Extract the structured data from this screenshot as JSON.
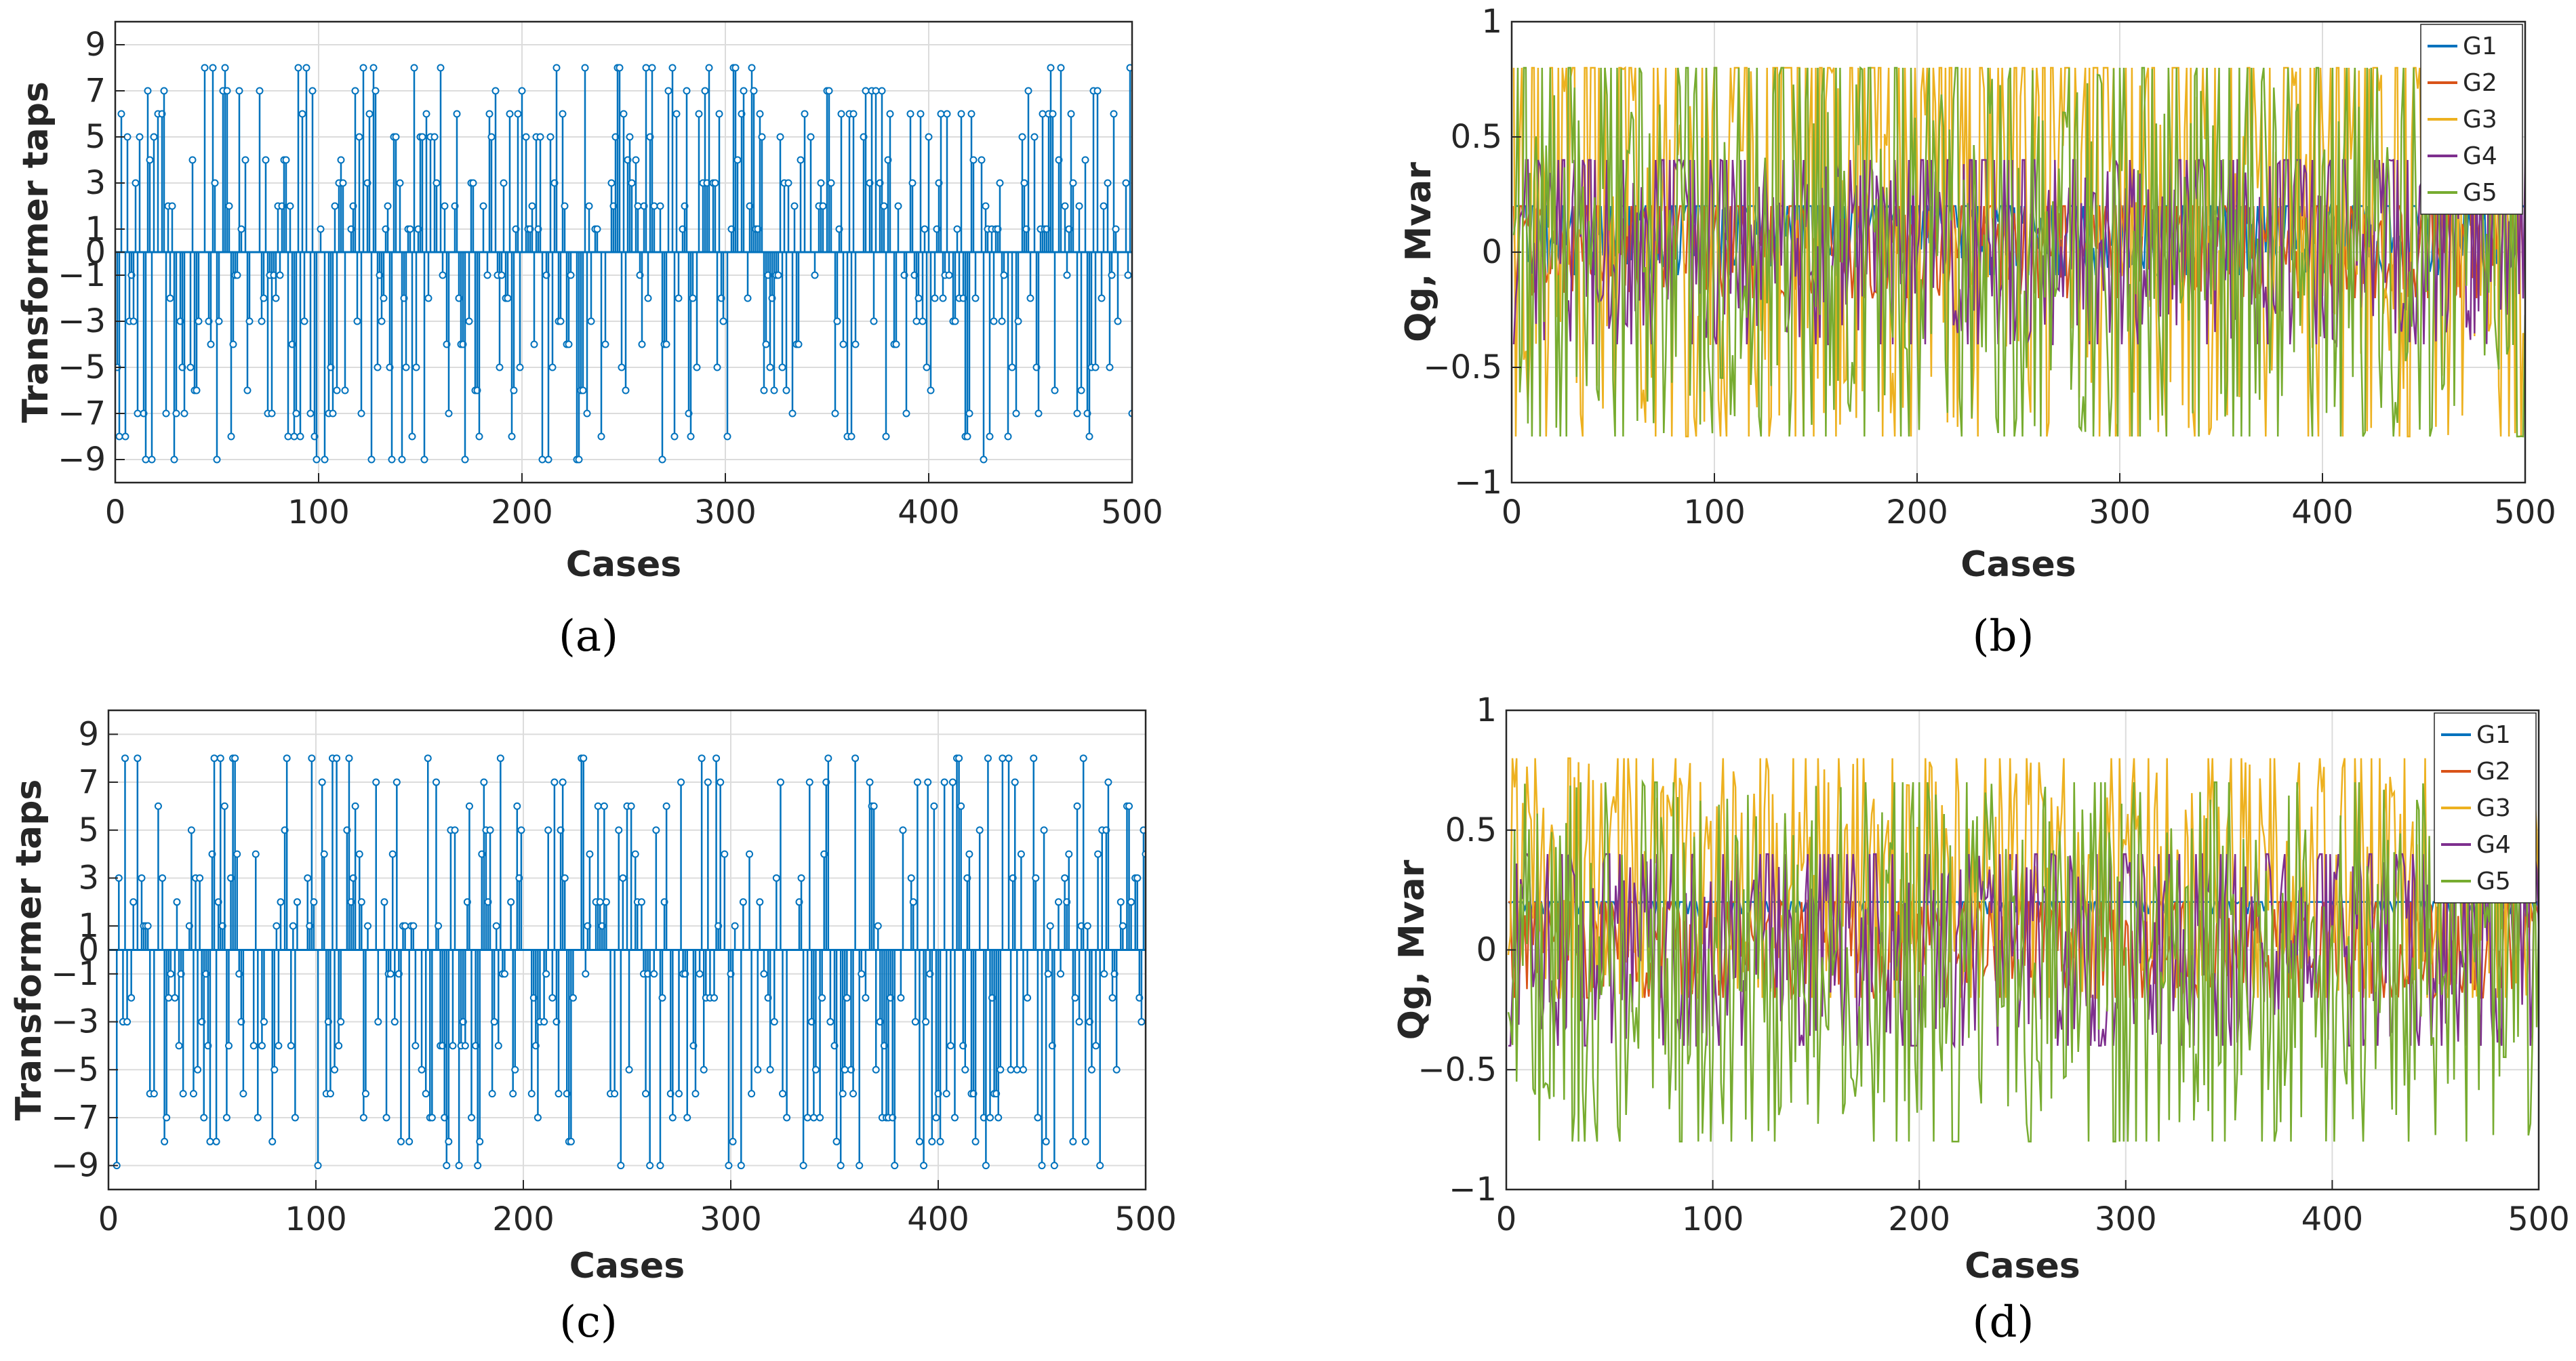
{
  "panels": [
    {
      "id": "a",
      "caption": "(a)",
      "kind": "stem",
      "chart_data": {
        "type": "stem",
        "title": "",
        "xlabel": "Cases",
        "ylabel": "Transformer taps",
        "xlim": [
          0,
          500
        ],
        "ylim": [
          -10,
          10
        ],
        "xticks": [
          0,
          100,
          200,
          300,
          400,
          500
        ],
        "yticks": [
          9,
          7,
          5,
          3,
          1,
          0,
          -1,
          -3,
          -5,
          -7,
          -9
        ],
        "n_points": 500,
        "allowed_values": [
          -9,
          -8,
          -7,
          -6,
          -5,
          -4,
          -3,
          -2,
          -1,
          0,
          1,
          2,
          3,
          4,
          5,
          6,
          7,
          8
        ],
        "color": "#0072BD",
        "series": [
          {
            "name": "Transformer taps",
            "seed": 11,
            "zero_fraction": 0.2
          }
        ]
      }
    },
    {
      "id": "b",
      "caption": "(b)",
      "kind": "lines",
      "chart_data": {
        "type": "line",
        "title": "",
        "xlabel": "Cases",
        "ylabel": "Qg, Mvar",
        "xlim": [
          0,
          500
        ],
        "ylim": [
          -1,
          1
        ],
        "xticks": [
          0,
          100,
          200,
          300,
          400,
          500
        ],
        "yticks": [
          1,
          0.5,
          0,
          -0.5,
          -1
        ],
        "ytick_labels": [
          "1",
          "0.5",
          "0",
          "−0.5",
          "−1"
        ],
        "n_points": 500,
        "legend": "top-right",
        "series": [
          {
            "name": "G1",
            "color": "#0072BD",
            "min": -0.1,
            "max": 0.2,
            "hi_prob": 0.45,
            "seed": 21
          },
          {
            "name": "G2",
            "color": "#D95319",
            "min": -0.2,
            "max": 0.2,
            "hi_prob": 0.25,
            "seed": 22
          },
          {
            "name": "G3",
            "color": "#EDB120",
            "min": -0.8,
            "max": 0.8,
            "hi_prob": 0.35,
            "seed": 23
          },
          {
            "name": "G4",
            "color": "#7E2F8E",
            "min": -0.4,
            "max": 0.4,
            "hi_prob": 0.2,
            "seed": 24
          },
          {
            "name": "G5",
            "color": "#77AC30",
            "min": -0.8,
            "max": 0.8,
            "hi_prob": 0.15,
            "seed": 25
          }
        ]
      }
    },
    {
      "id": "c",
      "caption": "(c)",
      "kind": "stem",
      "chart_data": {
        "type": "stem",
        "title": "",
        "xlabel": "Cases",
        "ylabel": "Transformer taps",
        "xlim": [
          0,
          500
        ],
        "ylim": [
          -10,
          10
        ],
        "xticks": [
          0,
          100,
          200,
          300,
          400,
          500
        ],
        "yticks": [
          9,
          7,
          5,
          3,
          1,
          0,
          -1,
          -3,
          -5,
          -7,
          -9
        ],
        "n_points": 500,
        "allowed_values": [
          -9,
          -8,
          -7,
          -6,
          -5,
          -4,
          -3,
          -2,
          -1,
          0,
          1,
          2,
          3,
          4,
          5,
          6,
          7,
          8
        ],
        "color": "#0072BD",
        "series": [
          {
            "name": "Transformer taps",
            "seed": 31,
            "zero_fraction": 0.25
          }
        ]
      }
    },
    {
      "id": "d",
      "caption": "(d)",
      "kind": "lines",
      "chart_data": {
        "type": "line",
        "title": "",
        "xlabel": "Cases",
        "ylabel": "Qg, Mvar",
        "xlim": [
          0,
          500
        ],
        "ylim": [
          -1,
          1
        ],
        "xticks": [
          0,
          100,
          200,
          300,
          400,
          500
        ],
        "yticks": [
          1,
          0.5,
          0,
          -0.5,
          -1
        ],
        "ytick_labels": [
          "1",
          "0.5",
          "0",
          "−0.5",
          "−1"
        ],
        "n_points": 500,
        "legend": "top-right",
        "series": [
          {
            "name": "G1",
            "color": "#0072BD",
            "min": 0.15,
            "max": 0.2,
            "hi_prob": 0.85,
            "seed": 41
          },
          {
            "name": "G2",
            "color": "#D95319",
            "min": -0.2,
            "max": 0.2,
            "hi_prob": 0.3,
            "seed": 42
          },
          {
            "name": "G3",
            "color": "#EDB120",
            "min": -0.2,
            "max": 0.8,
            "hi_prob": 0.12,
            "seed": 43
          },
          {
            "name": "G4",
            "color": "#7E2F8E",
            "min": -0.4,
            "max": 0.4,
            "hi_prob": 0.2,
            "seed": 44
          },
          {
            "name": "G5",
            "color": "#77AC30",
            "min": -0.8,
            "max": 0.7,
            "hi_prob": 0.05,
            "seed": 45
          }
        ]
      }
    }
  ]
}
